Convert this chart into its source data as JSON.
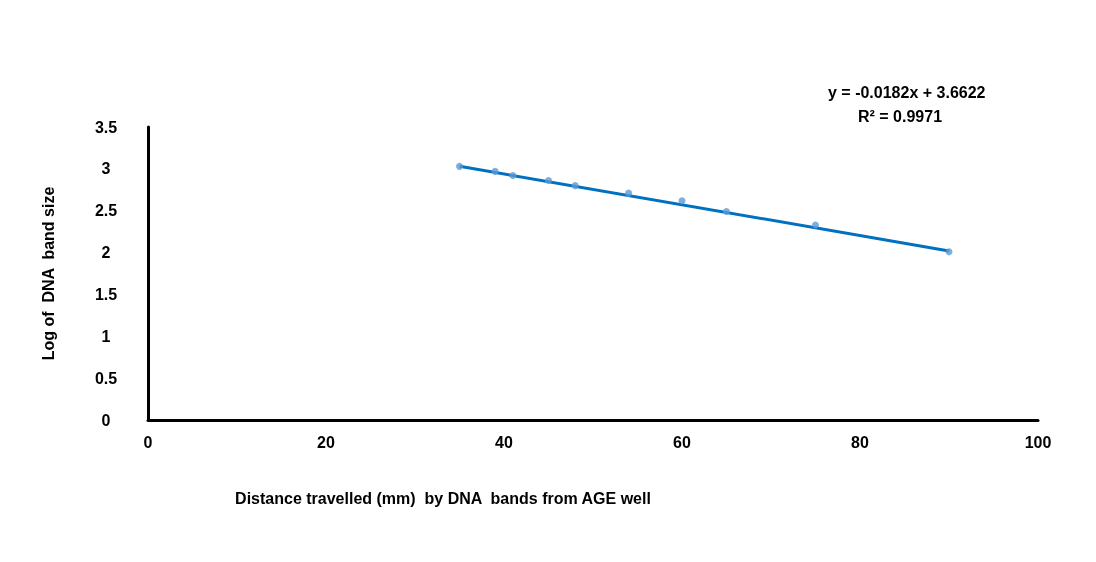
{
  "chart_data": {
    "type": "scatter",
    "xlabel": "Distance travelled (mm)  by DNA  bands from AGE well",
    "ylabel": "Log of  DNA  band size",
    "annotations": [
      "y = -0.0182x + 3.6622",
      "R² = 0.9971"
    ],
    "x": [
      35,
      39,
      41,
      45,
      48,
      54,
      60,
      65,
      75,
      90
    ],
    "series": [
      {
        "color": "#5b9bd5",
        "marker": "circle",
        "values": [
          3.03,
          2.97,
          2.92,
          2.86,
          2.8,
          2.71,
          2.62,
          2.49,
          2.33,
          2.01
        ]
      },
      {
        "type": "line",
        "color": "#0070c0",
        "x": [
          35,
          90
        ],
        "values": [
          3.03,
          2.02
        ],
        "marker": "none",
        "line_style": "solid"
      }
    ],
    "xlim": [
      0,
      100
    ],
    "xticks": [
      0,
      20,
      40,
      60,
      80,
      100
    ],
    "ylim": [
      0,
      3.5
    ],
    "yticks": [
      0,
      0.5,
      1,
      1.5,
      2,
      2.5,
      3,
      3.5
    ],
    "grid": false
  }
}
